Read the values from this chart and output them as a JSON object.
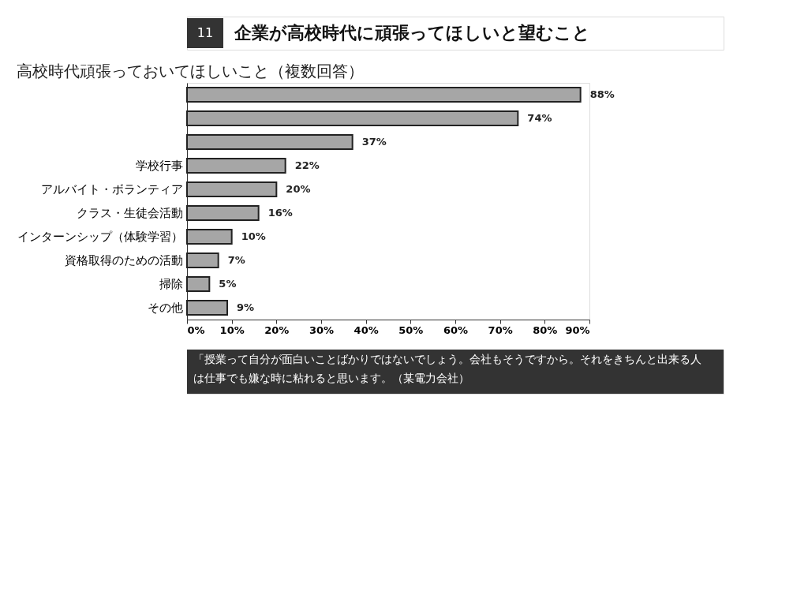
{
  "chart_data": {
    "type": "bar",
    "orientation": "horizontal",
    "title": "企業が高校時代に頑張ってほしいと望むこと",
    "subtitle": "高校時代頑張っておいてほしいこと（複数回答）",
    "categories": [
      null,
      null,
      null,
      "学校行事",
      "アルバイト・ボランティア",
      "クラス・生徒会活動",
      "インターンシップ（体験学習）",
      "資格取得のための活動",
      "掃除",
      "その他"
    ],
    "values": [
      88,
      74,
      37,
      22,
      20,
      16,
      10,
      7,
      5,
      9
    ],
    "value_labels": [
      "88%",
      "74%",
      "37%",
      "22%",
      "20%",
      "16%",
      "10%",
      "7%",
      "5%",
      "9%"
    ],
    "color": "#a6a6a6",
    "xlim": [
      0,
      90
    ],
    "xticks": [
      {
        "value": 0,
        "label": "0%"
      },
      {
        "value": 10,
        "label": "10%"
      },
      {
        "value": 20,
        "label": "20%"
      },
      {
        "value": 30,
        "label": "30%"
      },
      {
        "value": 40,
        "label": "40%"
      },
      {
        "value": 50,
        "label": "50%"
      },
      {
        "value": 60,
        "label": "60%"
      },
      {
        "value": 70,
        "label": "70%"
      },
      {
        "value": 80,
        "label": "80%"
      },
      {
        "value": 90,
        "label": "90%"
      }
    ],
    "grid": false,
    "annotations": [
      "11",
      "「授業って自分が面白いことばかりではないでしょう。会社もそうですから。それをきちんと出来る人は仕事でも嫌な時に粘れると思います。（某電力会社）"
    ]
  }
}
